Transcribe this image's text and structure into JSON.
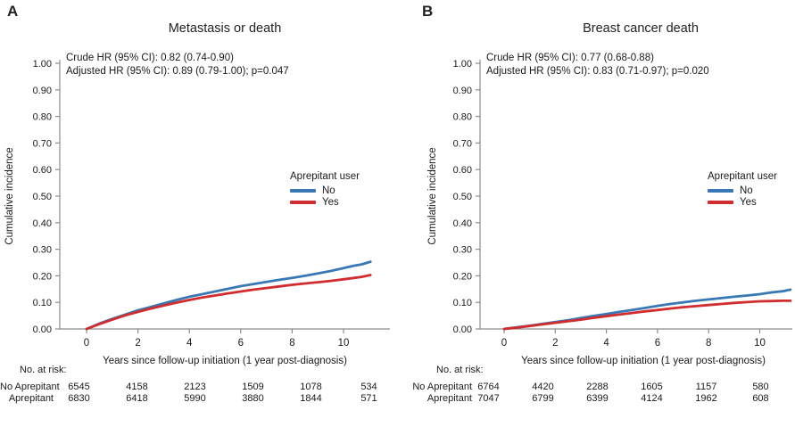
{
  "panels": [
    {
      "letter": "A",
      "title": "Metastasis or death",
      "hr_line1": "Crude HR (95% CI): 0.82 (0.74-0.90)",
      "hr_line2": "Adjusted HR (95% CI): 0.89 (0.79-1.00); p=0.047",
      "ylabel": "Cumulative incidence",
      "xlabel": "Years since follow-up initiation (1 year post-diagnosis)",
      "legend": {
        "title": "Aprepitant user",
        "items": [
          {
            "label": "No",
            "color": "#3878B4"
          },
          {
            "label": "Yes",
            "color": "#D12C2E"
          }
        ]
      },
      "risk_table": {
        "caption": "No. at risk:",
        "rows": [
          {
            "label": "No Aprepitant",
            "values": [
              "6545",
              "4158",
              "2123",
              "1509",
              "1078",
              "534"
            ]
          },
          {
            "label": "Aprepitant",
            "values": [
              "6830",
              "6418",
              "5990",
              "3880",
              "1844",
              "571"
            ]
          }
        ]
      }
    },
    {
      "letter": "B",
      "title": "Breast cancer death",
      "hr_line1": "Crude HR (95% CI): 0.77 (0.68-0.88)",
      "hr_line2": "Adjusted HR (95% CI): 0.83 (0.71-0.97); p=0.020",
      "ylabel": "Cumulative incidence",
      "xlabel": "Years since follow-up initiation (1 year post-diagnosis)",
      "legend": {
        "title": "Aprepitant user",
        "items": [
          {
            "label": "No",
            "color": "#3878B4"
          },
          {
            "label": "Yes",
            "color": "#D12C2E"
          }
        ]
      },
      "risk_table": {
        "caption": "No. at risk:",
        "rows": [
          {
            "label": "No Aprepitant",
            "values": [
              "6764",
              "4420",
              "2288",
              "1605",
              "1157",
              "580"
            ]
          },
          {
            "label": "Aprepitant",
            "values": [
              "7047",
              "6799",
              "6399",
              "4124",
              "1962",
              "608"
            ]
          }
        ]
      }
    }
  ],
  "chart_data": [
    {
      "type": "line",
      "title": "Metastasis or death",
      "xlabel": "Years since follow-up initiation (1 year post-diagnosis)",
      "ylabel": "Cumulative incidence",
      "xlim": [
        0,
        11.8
      ],
      "ylim": [
        0,
        1.0
      ],
      "xticks": [
        0,
        2,
        4,
        6,
        8,
        10
      ],
      "yticks": [
        0.0,
        0.1,
        0.2,
        0.3,
        0.4,
        0.5,
        0.6,
        0.7,
        0.8,
        0.9,
        1.0
      ],
      "legend_title": "Aprepitant user",
      "legend_position": "right-middle",
      "grid": false,
      "annotations": [
        "Crude HR (95% CI): 0.82 (0.74-0.90)",
        "Adjusted HR (95% CI): 0.89 (0.79-1.00); p=0.047"
      ],
      "series": [
        {
          "name": "No",
          "color": "#3878B4",
          "x": [
            0,
            0.5,
            1,
            1.5,
            2,
            2.5,
            3,
            3.5,
            4,
            4.5,
            5,
            5.5,
            6,
            6.5,
            7,
            7.5,
            8,
            8.5,
            9,
            9.5,
            10,
            10.4,
            10.7,
            11.05
          ],
          "y": [
            0,
            0.02,
            0.038,
            0.054,
            0.07,
            0.083,
            0.096,
            0.109,
            0.121,
            0.131,
            0.141,
            0.151,
            0.161,
            0.169,
            0.177,
            0.185,
            0.192,
            0.2,
            0.209,
            0.218,
            0.229,
            0.238,
            0.243,
            0.253
          ]
        },
        {
          "name": "Yes",
          "color": "#D12C2E",
          "x": [
            0,
            0.5,
            1,
            1.5,
            2,
            2.5,
            3,
            3.5,
            4,
            4.5,
            5,
            5.5,
            6,
            6.5,
            7,
            7.5,
            8,
            8.5,
            9,
            9.5,
            10,
            10.4,
            10.7,
            11.05
          ],
          "y": [
            0,
            0.018,
            0.035,
            0.051,
            0.064,
            0.077,
            0.088,
            0.099,
            0.109,
            0.118,
            0.126,
            0.134,
            0.141,
            0.148,
            0.154,
            0.16,
            0.166,
            0.171,
            0.176,
            0.181,
            0.187,
            0.192,
            0.196,
            0.203
          ]
        }
      ],
      "risk_table": {
        "caption": "No. at risk:",
        "time_points": [
          0,
          2,
          4,
          6,
          8,
          10
        ],
        "rows": [
          {
            "label": "No Aprepitant",
            "values": [
              6545,
              4158,
              2123,
              1509,
              1078,
              534
            ]
          },
          {
            "label": "Aprepitant",
            "values": [
              6830,
              6418,
              5990,
              3880,
              1844,
              571
            ]
          }
        ]
      }
    },
    {
      "type": "line",
      "title": "Breast cancer death",
      "xlabel": "Years since follow-up initiation (1 year post-diagnosis)",
      "ylabel": "Cumulative incidence",
      "xlim": [
        0,
        11.3
      ],
      "ylim": [
        0,
        1.0
      ],
      "xticks": [
        0,
        2,
        4,
        6,
        8,
        10
      ],
      "yticks": [
        0.0,
        0.1,
        0.2,
        0.3,
        0.4,
        0.5,
        0.6,
        0.7,
        0.8,
        0.9,
        1.0
      ],
      "legend_title": "Aprepitant user",
      "legend_position": "right-middle",
      "grid": false,
      "annotations": [
        "Crude HR (95% CI): 0.77 (0.68-0.88)",
        "Adjusted HR (95% CI): 0.83 (0.71-0.97); p=0.020"
      ],
      "series": [
        {
          "name": "No",
          "color": "#3878B4",
          "x": [
            0,
            0.5,
            1,
            1.5,
            2,
            2.5,
            3,
            3.5,
            4,
            4.5,
            5,
            5.5,
            6,
            6.5,
            7,
            7.5,
            8,
            8.5,
            9,
            9.5,
            10,
            10.5,
            10.9,
            11.2
          ],
          "y": [
            0,
            0.006,
            0.012,
            0.019,
            0.026,
            0.033,
            0.041,
            0.049,
            0.056,
            0.064,
            0.071,
            0.079,
            0.087,
            0.094,
            0.1,
            0.106,
            0.111,
            0.116,
            0.121,
            0.126,
            0.131,
            0.138,
            0.142,
            0.148
          ]
        },
        {
          "name": "Yes",
          "color": "#D12C2E",
          "x": [
            0,
            0.5,
            1,
            1.5,
            2,
            2.5,
            3,
            3.5,
            4,
            4.5,
            5,
            5.5,
            6,
            6.5,
            7,
            7.5,
            8,
            8.5,
            9,
            9.5,
            10,
            10.5,
            10.9,
            11.2
          ],
          "y": [
            0,
            0.005,
            0.011,
            0.017,
            0.023,
            0.029,
            0.035,
            0.042,
            0.048,
            0.054,
            0.06,
            0.066,
            0.071,
            0.077,
            0.082,
            0.086,
            0.09,
            0.094,
            0.098,
            0.101,
            0.104,
            0.105,
            0.106,
            0.106
          ]
        }
      ],
      "risk_table": {
        "caption": "No. at risk:",
        "time_points": [
          0,
          2,
          4,
          6,
          8,
          10
        ],
        "rows": [
          {
            "label": "No Aprepitant",
            "values": [
              6764,
              4420,
              2288,
              1605,
              1157,
              580
            ]
          },
          {
            "label": "Aprepitant",
            "values": [
              7047,
              6799,
              6399,
              4124,
              1962,
              608
            ]
          }
        ]
      }
    }
  ],
  "style": {
    "axis_color": "#8C8C8C",
    "text_color": "#1A1A1A",
    "blue": "#3878B4",
    "red": "#D12C2E"
  }
}
